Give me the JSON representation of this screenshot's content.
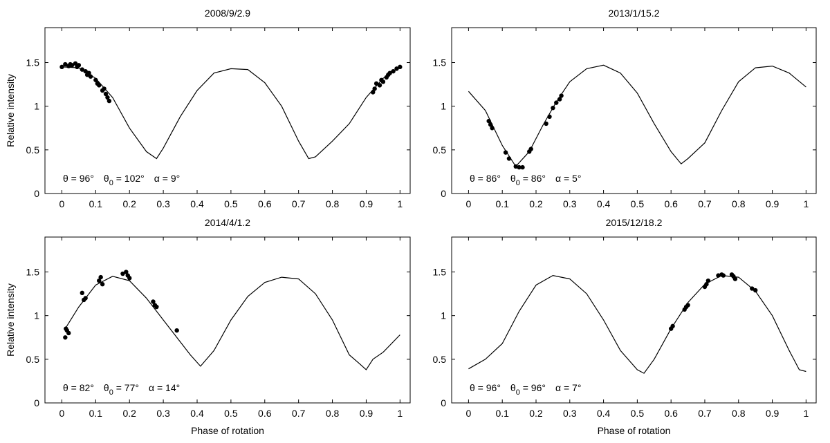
{
  "chart_data": [
    {
      "type": "scatter",
      "title": "2008/9/2.9",
      "xlabel": "",
      "ylabel": "Relative intensity",
      "xlim": [
        -0.05,
        1.03
      ],
      "ylim": [
        0,
        1.9
      ],
      "xticks": [
        "0",
        "0.1",
        "0.2",
        "0.3",
        "0.4",
        "0.5",
        "0.6",
        "0.7",
        "0.8",
        "0.9",
        "1"
      ],
      "yticks": [
        "0",
        "0.5",
        "1",
        "1.5"
      ],
      "annotation": {
        "theta": "θ = 96°",
        "theta0_pre": "θ",
        "theta0_sub": "0",
        "theta0_post": " = 102°",
        "alpha": "α = 9°"
      },
      "model": {
        "x": [
          0,
          0.05,
          0.1,
          0.15,
          0.2,
          0.25,
          0.28,
          0.3,
          0.35,
          0.4,
          0.45,
          0.5,
          0.55,
          0.6,
          0.65,
          0.7,
          0.73,
          0.75,
          0.8,
          0.85,
          0.9,
          0.95,
          1.0
        ],
        "y": [
          1.45,
          1.44,
          1.32,
          1.1,
          0.75,
          0.48,
          0.4,
          0.52,
          0.88,
          1.18,
          1.38,
          1.43,
          1.42,
          1.27,
          1.0,
          0.6,
          0.4,
          0.42,
          0.6,
          0.8,
          1.1,
          1.32,
          1.45
        ]
      },
      "points": {
        "x": [
          0,
          0.01,
          0.02,
          0.025,
          0.03,
          0.04,
          0.045,
          0.05,
          0.06,
          0.07,
          0.075,
          0.08,
          0.085,
          0.1,
          0.105,
          0.11,
          0.12,
          0.125,
          0.13,
          0.135,
          0.14,
          0.92,
          0.925,
          0.93,
          0.94,
          0.945,
          0.95,
          0.96,
          0.965,
          0.97,
          0.98,
          0.99,
          1.0
        ],
        "y": [
          1.45,
          1.48,
          1.46,
          1.48,
          1.47,
          1.49,
          1.45,
          1.47,
          1.42,
          1.4,
          1.36,
          1.38,
          1.34,
          1.3,
          1.26,
          1.24,
          1.18,
          1.2,
          1.14,
          1.1,
          1.06,
          1.16,
          1.2,
          1.26,
          1.24,
          1.3,
          1.28,
          1.33,
          1.36,
          1.38,
          1.4,
          1.43,
          1.45
        ]
      }
    },
    {
      "type": "scatter",
      "title": "2013/1/15.2",
      "xlabel": "",
      "ylabel": "",
      "xlim": [
        -0.05,
        1.03
      ],
      "ylim": [
        0,
        1.9
      ],
      "xticks": [
        "0",
        "0.1",
        "0.2",
        "0.3",
        "0.4",
        "0.5",
        "0.6",
        "0.7",
        "0.8",
        "0.9",
        "1"
      ],
      "yticks": [
        "0",
        "0.5",
        "1",
        "1.5"
      ],
      "annotation": {
        "theta": "θ = 86°",
        "theta0_pre": "θ",
        "theta0_sub": "0",
        "theta0_post": " = 86°",
        "alpha": "α = 5°"
      },
      "model": {
        "x": [
          0,
          0.05,
          0.1,
          0.14,
          0.18,
          0.22,
          0.26,
          0.3,
          0.35,
          0.4,
          0.45,
          0.5,
          0.55,
          0.6,
          0.63,
          0.65,
          0.7,
          0.75,
          0.8,
          0.85,
          0.9,
          0.95,
          1.0
        ],
        "y": [
          1.17,
          0.95,
          0.55,
          0.31,
          0.48,
          0.78,
          1.05,
          1.28,
          1.43,
          1.47,
          1.38,
          1.15,
          0.8,
          0.48,
          0.34,
          0.4,
          0.58,
          0.95,
          1.28,
          1.44,
          1.46,
          1.38,
          1.22
        ]
      },
      "points": {
        "x": [
          0.06,
          0.065,
          0.07,
          0.11,
          0.12,
          0.14,
          0.15,
          0.16,
          0.18,
          0.185,
          0.23,
          0.24,
          0.25,
          0.26,
          0.27,
          0.275
        ],
        "y": [
          0.83,
          0.79,
          0.75,
          0.47,
          0.4,
          0.31,
          0.3,
          0.3,
          0.48,
          0.51,
          0.8,
          0.88,
          0.98,
          1.04,
          1.08,
          1.12
        ]
      }
    },
    {
      "type": "scatter",
      "title": "2014/4/1.2",
      "xlabel": "Phase of rotation",
      "ylabel": "Relative intensity",
      "xlim": [
        -0.05,
        1.03
      ],
      "ylim": [
        0,
        1.9
      ],
      "xticks": [
        "0",
        "0.1",
        "0.2",
        "0.3",
        "0.4",
        "0.5",
        "0.6",
        "0.7",
        "0.8",
        "0.9",
        "1"
      ],
      "yticks": [
        "0",
        "0.5",
        "1",
        "1.5"
      ],
      "annotation": {
        "theta": "θ = 82°",
        "theta0_pre": "θ",
        "theta0_sub": "0",
        "theta0_post": " = 77°",
        "alpha": "α = 14°"
      },
      "model": {
        "x": [
          0.01,
          0.05,
          0.1,
          0.15,
          0.2,
          0.25,
          0.3,
          0.35,
          0.38,
          0.41,
          0.45,
          0.5,
          0.55,
          0.6,
          0.65,
          0.7,
          0.75,
          0.8,
          0.85,
          0.88,
          0.9,
          0.92,
          0.95,
          1.0
        ],
        "y": [
          0.85,
          1.1,
          1.35,
          1.45,
          1.4,
          1.2,
          0.95,
          0.7,
          0.55,
          0.42,
          0.6,
          0.95,
          1.22,
          1.38,
          1.44,
          1.42,
          1.25,
          0.95,
          0.55,
          0.45,
          0.38,
          0.5,
          0.58,
          0.78
        ]
      },
      "points": {
        "x": [
          0.01,
          0.012,
          0.015,
          0.02,
          0.06,
          0.065,
          0.07,
          0.11,
          0.115,
          0.12,
          0.18,
          0.19,
          0.195,
          0.2,
          0.27,
          0.275,
          0.28,
          0.34
        ],
        "y": [
          0.75,
          0.85,
          0.83,
          0.8,
          1.26,
          1.18,
          1.2,
          1.4,
          1.44,
          1.36,
          1.48,
          1.5,
          1.46,
          1.43,
          1.16,
          1.12,
          1.1,
          0.83
        ]
      }
    },
    {
      "type": "scatter",
      "title": "2015/12/18.2",
      "xlabel": "Phase of rotation",
      "ylabel": "",
      "xlim": [
        -0.05,
        1.03
      ],
      "ylim": [
        0,
        1.9
      ],
      "xticks": [
        "0",
        "0.1",
        "0.2",
        "0.3",
        "0.4",
        "0.5",
        "0.6",
        "0.7",
        "0.8",
        "0.9",
        "1"
      ],
      "yticks": [
        "0",
        "0.5",
        "1",
        "1.5"
      ],
      "annotation": {
        "theta": "θ = 96°",
        "theta0_pre": "θ",
        "theta0_sub": "0",
        "theta0_post": " = 96°",
        "alpha": "α = 7°"
      },
      "model": {
        "x": [
          0,
          0.05,
          0.1,
          0.15,
          0.2,
          0.25,
          0.3,
          0.35,
          0.4,
          0.45,
          0.5,
          0.52,
          0.55,
          0.6,
          0.65,
          0.7,
          0.75,
          0.8,
          0.85,
          0.9,
          0.95,
          0.98,
          1.0
        ],
        "y": [
          0.39,
          0.5,
          0.68,
          1.05,
          1.35,
          1.46,
          1.42,
          1.25,
          0.95,
          0.6,
          0.38,
          0.34,
          0.5,
          0.85,
          1.15,
          1.36,
          1.46,
          1.44,
          1.28,
          1.0,
          0.6,
          0.38,
          0.36
        ]
      },
      "points": {
        "x": [
          0.6,
          0.605,
          0.64,
          0.645,
          0.65,
          0.7,
          0.705,
          0.71,
          0.74,
          0.75,
          0.755,
          0.78,
          0.785,
          0.79,
          0.84,
          0.85
        ],
        "y": [
          0.85,
          0.88,
          1.07,
          1.1,
          1.12,
          1.33,
          1.36,
          1.4,
          1.46,
          1.47,
          1.46,
          1.47,
          1.45,
          1.42,
          1.31,
          1.29
        ]
      }
    }
  ]
}
